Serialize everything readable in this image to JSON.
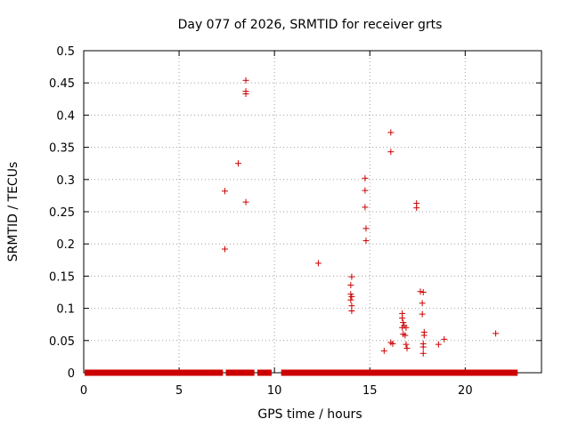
{
  "chart_data": {
    "type": "scatter",
    "title": "Day 077 of 2026, SRMTID for receiver grts",
    "xlabel": "GPS time / hours",
    "ylabel": "SRMTID / TECUs",
    "xlim": [
      0,
      24
    ],
    "ylim": [
      0,
      0.5
    ],
    "x_ticks": [
      0,
      5,
      10,
      15,
      20
    ],
    "x_tick_labels": [
      "0",
      "5",
      "10",
      "15",
      "20"
    ],
    "y_ticks": [
      0,
      0.05,
      0.1,
      0.15,
      0.2,
      0.25,
      0.3,
      0.35,
      0.4,
      0.45,
      0.5
    ],
    "y_tick_labels": [
      "0",
      "0.05",
      "0.1",
      "0.15",
      "0.2",
      "0.25",
      "0.3",
      "0.35",
      "0.4",
      "0.45",
      "0.5"
    ],
    "grid": true,
    "marker": "+",
    "marker_color": "#cc0000",
    "baseline_zero_ranges": [
      [
        0.05,
        7.3
      ],
      [
        7.45,
        8.95
      ],
      [
        9.1,
        9.85
      ],
      [
        10.35,
        22.75
      ]
    ],
    "series": [
      {
        "name": "SRMTID",
        "points": [
          [
            7.4,
            0.282
          ],
          [
            7.4,
            0.192
          ],
          [
            8.1,
            0.325
          ],
          [
            8.5,
            0.454
          ],
          [
            8.5,
            0.437
          ],
          [
            8.5,
            0.433
          ],
          [
            8.5,
            0.265
          ],
          [
            12.3,
            0.17
          ],
          [
            14.05,
            0.149
          ],
          [
            14.0,
            0.136
          ],
          [
            14.0,
            0.122
          ],
          [
            14.05,
            0.118
          ],
          [
            14.0,
            0.113
          ],
          [
            14.05,
            0.104
          ],
          [
            14.05,
            0.096
          ],
          [
            14.75,
            0.302
          ],
          [
            14.75,
            0.283
          ],
          [
            14.75,
            0.257
          ],
          [
            14.8,
            0.224
          ],
          [
            14.8,
            0.205
          ],
          [
            15.75,
            0.034
          ],
          [
            16.1,
            0.373
          ],
          [
            16.1,
            0.343
          ],
          [
            16.1,
            0.047
          ],
          [
            16.2,
            0.045
          ],
          [
            16.7,
            0.092
          ],
          [
            16.7,
            0.085
          ],
          [
            16.75,
            0.078
          ],
          [
            16.8,
            0.073
          ],
          [
            16.7,
            0.07
          ],
          [
            16.9,
            0.07
          ],
          [
            16.75,
            0.06
          ],
          [
            16.85,
            0.058
          ],
          [
            16.9,
            0.044
          ],
          [
            16.95,
            0.038
          ],
          [
            17.45,
            0.263
          ],
          [
            17.45,
            0.256
          ],
          [
            17.65,
            0.126
          ],
          [
            17.8,
            0.125
          ],
          [
            17.75,
            0.108
          ],
          [
            17.75,
            0.091
          ],
          [
            17.85,
            0.063
          ],
          [
            17.85,
            0.058
          ],
          [
            17.8,
            0.045
          ],
          [
            17.8,
            0.04
          ],
          [
            17.8,
            0.03
          ],
          [
            18.6,
            0.044
          ],
          [
            18.9,
            0.052
          ],
          [
            21.6,
            0.061
          ]
        ]
      }
    ]
  }
}
